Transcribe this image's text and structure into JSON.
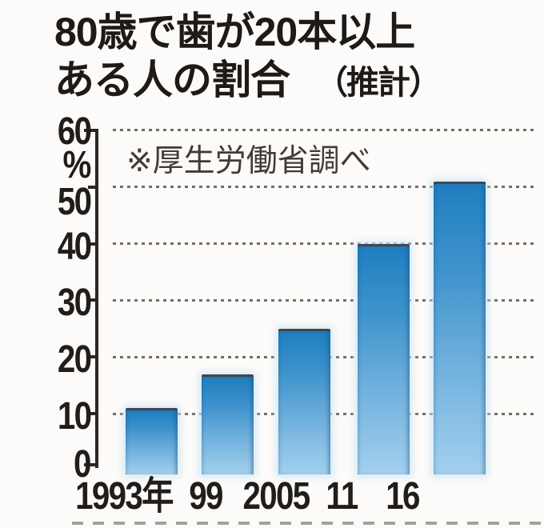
{
  "title": {
    "line1": "80歳で歯が20本以上",
    "line2_main": "ある人の割合",
    "line2_paren": "（推計）"
  },
  "source_note": "※厚生労働省調べ",
  "axes": {
    "y_unit": "%",
    "y_tick_labels": [
      "60",
      "50",
      "40",
      "30",
      "20",
      "10",
      "0"
    ],
    "x_tick_labels": [
      "1993年",
      "99",
      "2005",
      "11",
      "16"
    ]
  },
  "chart_data": {
    "type": "bar",
    "title": "80歳で歯が20本以上ある人の割合（推計）",
    "source_note": "※厚生労働省調べ",
    "categories": [
      "1993年",
      "99",
      "2005",
      "11",
      "16"
    ],
    "values": [
      11,
      17,
      25,
      40,
      51
    ],
    "xlabel": "",
    "ylabel": "%",
    "ylim": [
      0,
      60
    ],
    "yticks": [
      0,
      10,
      20,
      30,
      40,
      50,
      60
    ],
    "grid": "horizontal-dotted",
    "legend_position": "none",
    "colors": {
      "bar_gradient_top": "#1f7ec0",
      "bar_gradient_bottom": "#a3d0ee",
      "bar_top_edge": "#44464b",
      "grid_dots": "#5a534d",
      "axis": "#2b2724",
      "text": "#211d1b",
      "background": "#fcfbf9"
    }
  }
}
